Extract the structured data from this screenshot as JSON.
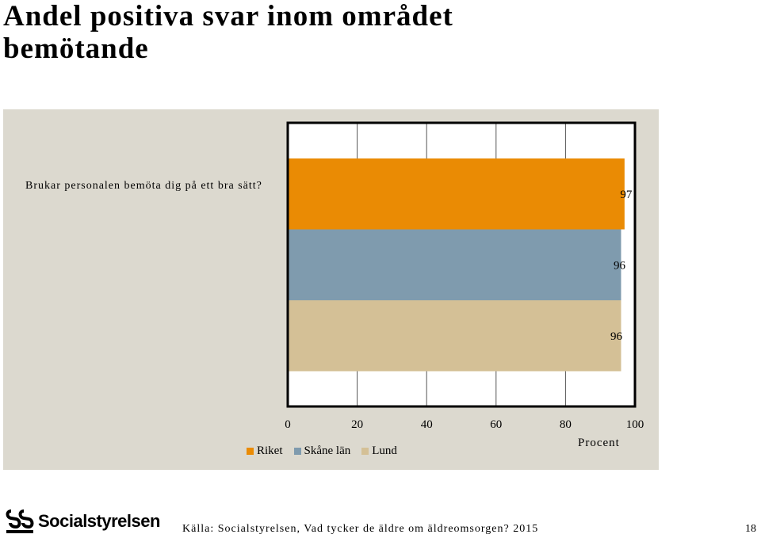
{
  "page": {
    "title": "Andel positiva svar inom området\nbemötande",
    "source": "Källa: Socialstyrelsen, Vad tycker de äldre om äldreomsorgen? 2015",
    "page_number": "18",
    "logo_text": "Socialstyrelsen"
  },
  "chart_data": {
    "type": "bar",
    "orientation": "horizontal",
    "question": "Brukar personalen bemöta dig på ett bra sätt?",
    "xlabel": "Procent",
    "xlim": [
      0,
      100
    ],
    "x_ticks": [
      0,
      20,
      40,
      60,
      80,
      100
    ],
    "grid": true,
    "legend_position": "bottom-left",
    "series": [
      {
        "name": "Riket",
        "value": 97,
        "color": "#ea8b04"
      },
      {
        "name": "Skåne län",
        "value": 96,
        "color": "#7f9bae"
      },
      {
        "name": "Lund",
        "value": 96,
        "color": "#d4c096"
      }
    ]
  }
}
